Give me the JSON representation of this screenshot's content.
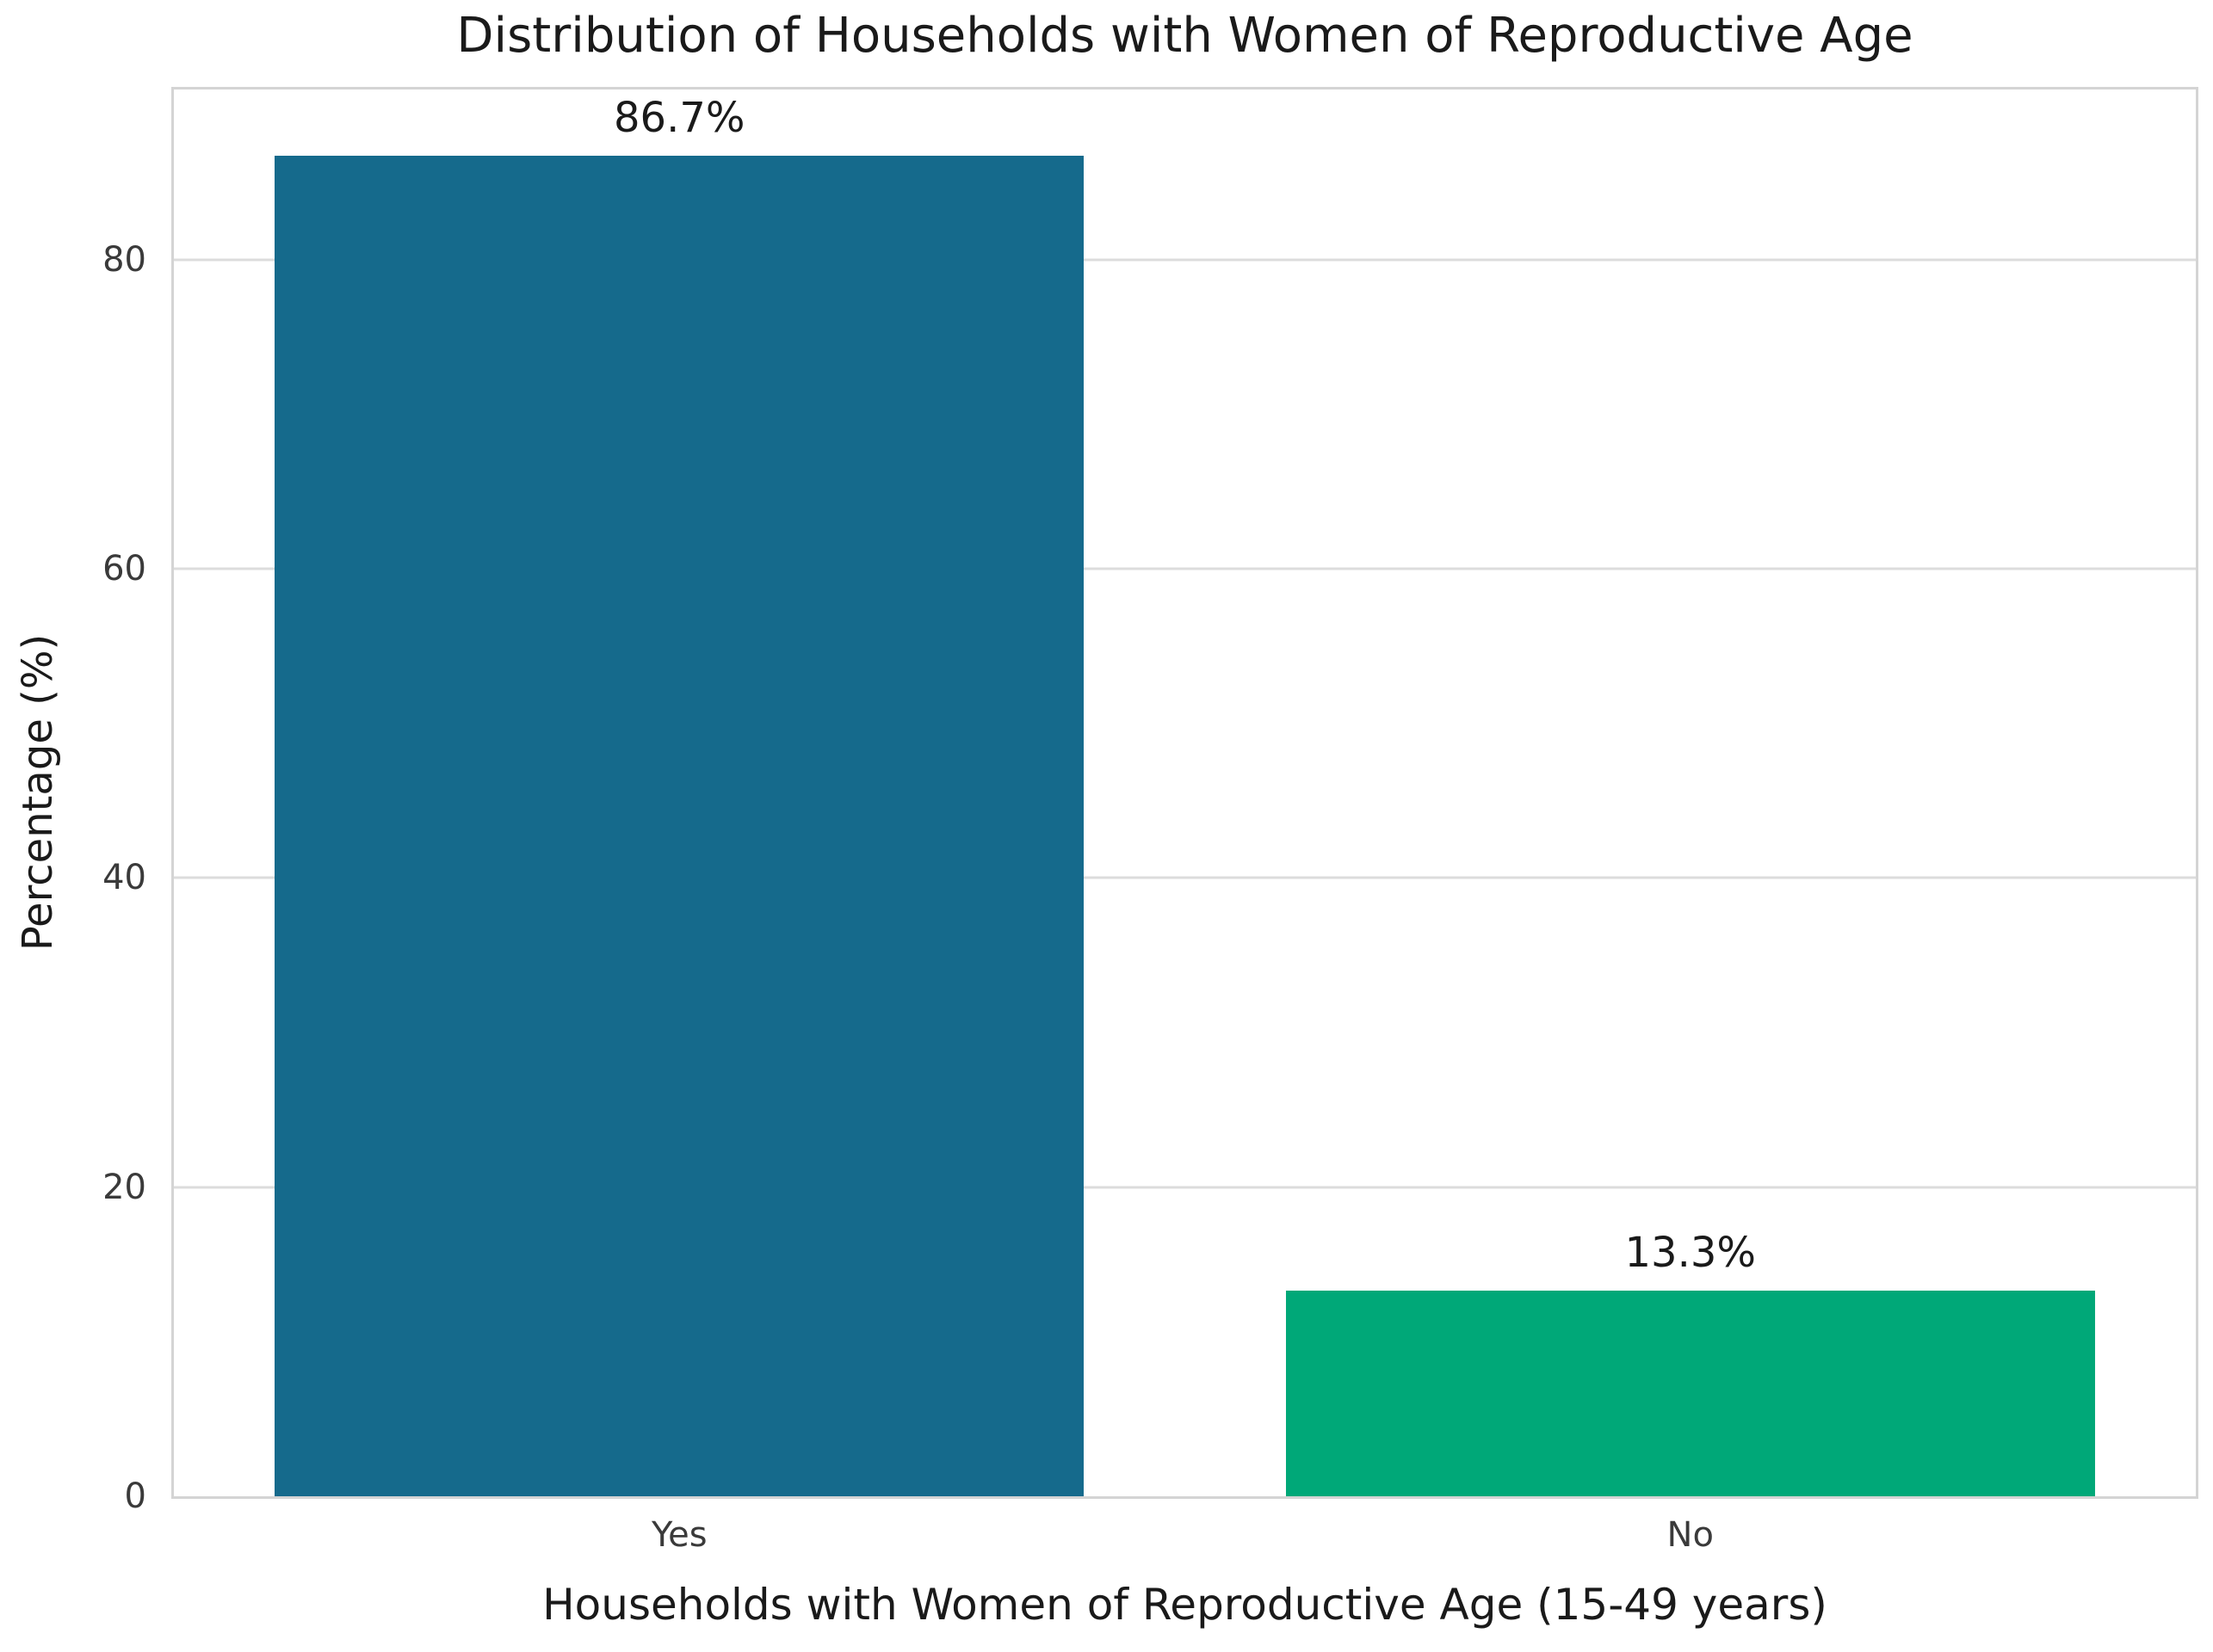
{
  "chart_data": {
    "type": "bar",
    "title": "Distribution of Households with Women of Reproductive Age",
    "xlabel": "Households with Women of Reproductive Age (15-49 years)",
    "ylabel": "Percentage (%)",
    "categories": [
      "Yes",
      "No"
    ],
    "values": [
      86.7,
      13.3
    ],
    "value_labels": [
      "86.7%",
      "13.3%"
    ],
    "bar_colors": [
      "#156a8c",
      "#00a878"
    ],
    "yticks": [
      0,
      20,
      40,
      60,
      80
    ],
    "ytick_labels": [
      "0",
      "20",
      "40",
      "60",
      "80"
    ],
    "ylim": [
      0,
      91
    ],
    "bar_width_fraction": 0.8,
    "grid": "horizontal",
    "legend_position": "none",
    "background_color": "#ffffff",
    "grid_color": "#dcdcdc",
    "frame_color": "#d4d4d4"
  }
}
